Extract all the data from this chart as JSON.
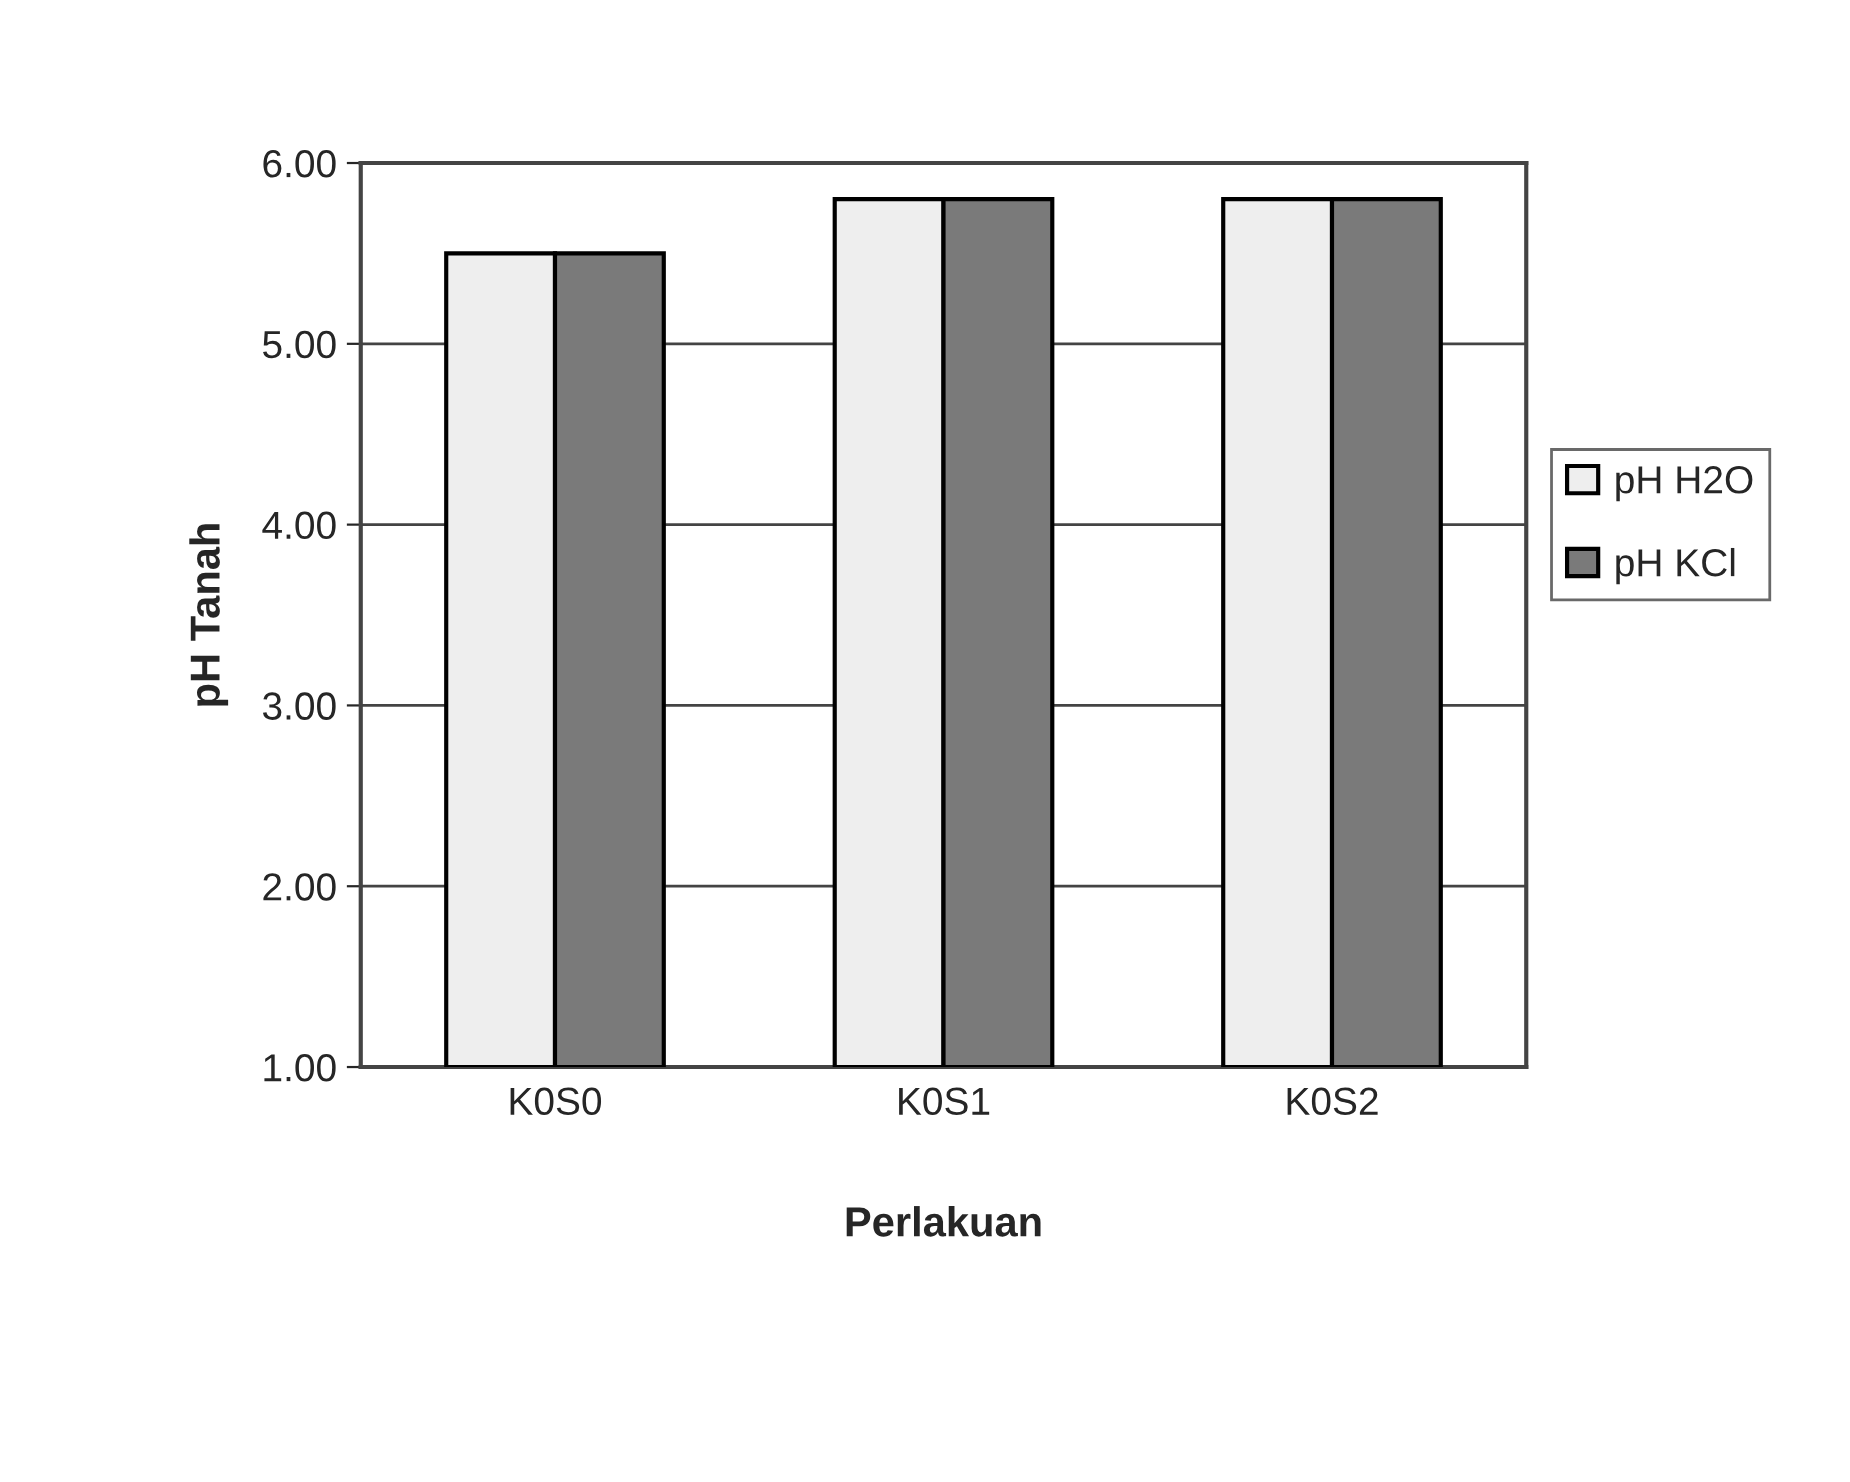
{
  "chart_data": {
    "type": "bar",
    "xlabel": "Perlakuan",
    "ylabel": "pH Tanah",
    "categories": [
      "K0S0",
      "K0S1",
      "K0S2"
    ],
    "series": [
      {
        "name": "pH H2O",
        "color": "#eeeeee",
        "values": [
          5.5,
          5.8,
          5.8
        ]
      },
      {
        "name": "pH KCl",
        "color": "#7a7a7a",
        "values": [
          5.5,
          5.8,
          5.8
        ]
      }
    ],
    "ylim": [
      1,
      6
    ],
    "yticks": [
      {
        "value": 1,
        "label": "1.00"
      },
      {
        "value": 2,
        "label": "2.00"
      },
      {
        "value": 3,
        "label": "3.00"
      },
      {
        "value": 4,
        "label": "4.00"
      },
      {
        "value": 5,
        "label": "5.00"
      },
      {
        "value": 6,
        "label": "6.00"
      }
    ],
    "grid": "y",
    "legend": "right"
  }
}
